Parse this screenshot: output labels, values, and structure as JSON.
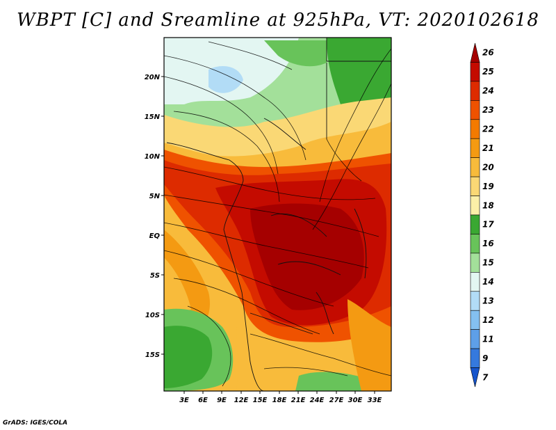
{
  "title": "WBPT [C] and Sreamline at 925hPa, VT: 2020102618",
  "footer": "GrADS: IGES/COLA",
  "map": {
    "lat_labels": [
      "20N",
      "15N",
      "10N",
      "5N",
      "EQ",
      "5S",
      "10S",
      "15S"
    ],
    "lon_labels": [
      "3E",
      "6E",
      "9E",
      "12E",
      "15E",
      "18E",
      "21E",
      "24E",
      "27E",
      "30E",
      "33E"
    ]
  },
  "colorbar": {
    "labels": [
      "26",
      "25",
      "24",
      "23",
      "22",
      "21",
      "20",
      "19",
      "18",
      "17",
      "16",
      "15",
      "14",
      "13",
      "12",
      "11",
      "9",
      "7"
    ],
    "colors": [
      "#a50000",
      "#c40b00",
      "#dd2b00",
      "#ef5200",
      "#f37a00",
      "#f49a12",
      "#f8bb3b",
      "#fad875",
      "#fbefa8",
      "#3aa832",
      "#68c35a",
      "#a3e09a",
      "#e3f6f2",
      "#b2dcf6",
      "#84c0f0",
      "#5e9fe8",
      "#3579dd",
      "#1655cc"
    ]
  }
}
